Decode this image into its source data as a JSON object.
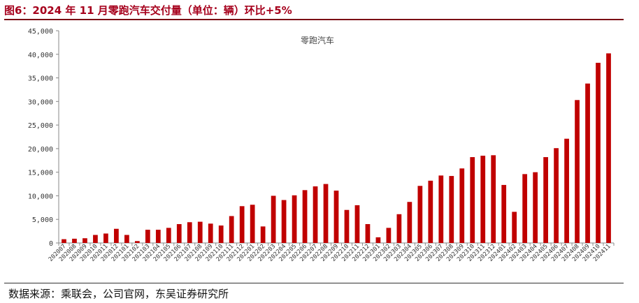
{
  "header": {
    "title": "图6：2024 年 11 月零跑汽车交付量（单位：辆）环比+5%"
  },
  "footer": {
    "source": "数据来源：乘联会，公司官网，东吴证券研究所"
  },
  "colors": {
    "bar": "#c00000",
    "title": "#a6001c"
  },
  "chart_data": {
    "type": "bar",
    "title": "零跑汽车",
    "xlabel": "",
    "ylabel": "",
    "ylim": [
      0,
      45000
    ],
    "yticks": [
      "0",
      "5,000",
      "10,000",
      "15,000",
      "20,000",
      "25,000",
      "30,000",
      "35,000",
      "40,000",
      "45,000"
    ],
    "grid": false,
    "categories": [
      "202007",
      "202008",
      "202009",
      "202010",
      "202011",
      "202012",
      "202101",
      "202102",
      "202103",
      "202104",
      "202105",
      "202106",
      "202107",
      "202108",
      "202109",
      "202110",
      "202111",
      "202112",
      "202201",
      "202202",
      "202203",
      "202204",
      "202205",
      "202206",
      "202207",
      "202208",
      "202209",
      "202210",
      "202211",
      "202212",
      "202301",
      "202302",
      "202303",
      "202304",
      "202305",
      "202306",
      "202307",
      "202308",
      "202309",
      "202310",
      "202311",
      "202312",
      "202401",
      "202402",
      "202403",
      "202404",
      "202405",
      "202406",
      "202407",
      "202408",
      "202409",
      "202410",
      "202411"
    ],
    "series": [
      {
        "values": [
          800,
          900,
          1000,
          1700,
          2000,
          3000,
          1700,
          400,
          2800,
          2800,
          3200,
          4000,
          4400,
          4500,
          4100,
          3700,
          5700,
          7800,
          8100,
          3500,
          10000,
          9100,
          10100,
          11200,
          12000,
          12500,
          11100,
          7000,
          8000,
          4000,
          1200,
          3200,
          6100,
          8700,
          12100,
          13200,
          14300,
          14200,
          15800,
          18200,
          18500,
          18600,
          12300,
          6600,
          14600,
          15000,
          18200,
          20100,
          22100,
          30300,
          33800,
          38200,
          40200
        ]
      }
    ]
  }
}
